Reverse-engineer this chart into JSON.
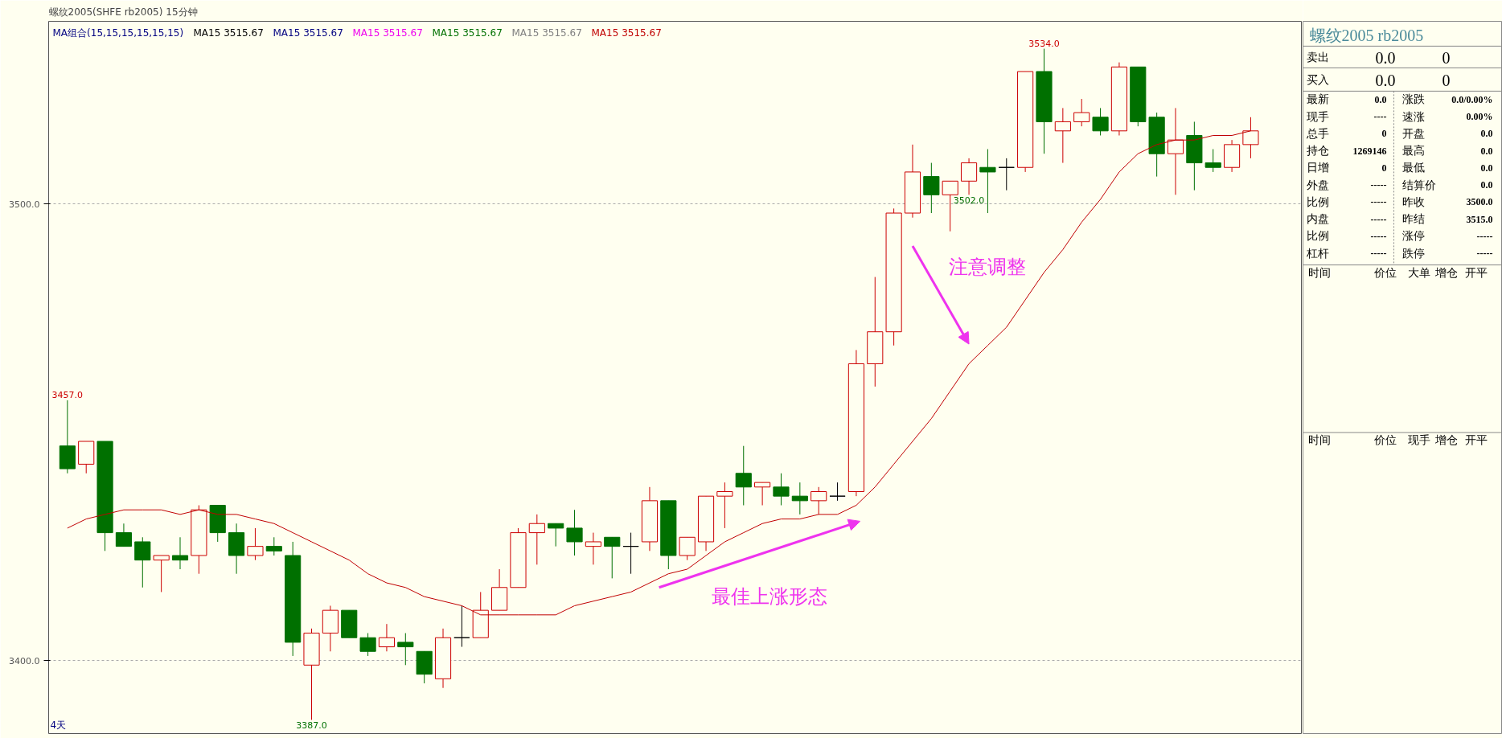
{
  "chart_data": [
    {
      "type": "candlestick",
      "title": "螺纹2005(SHFE rb2005)",
      "subtitle": "15分钟",
      "categories": [
        null,
        null,
        null,
        null,
        null,
        null,
        null,
        null,
        null,
        null,
        null,
        null,
        null,
        null,
        null,
        null,
        null,
        null,
        null,
        null,
        null,
        null,
        null,
        null,
        null,
        null,
        null,
        null,
        null,
        null,
        null,
        null,
        null,
        null,
        null,
        null,
        null,
        null,
        null,
        null,
        null,
        null,
        null,
        null,
        null,
        null,
        null,
        null,
        null,
        null,
        null,
        null,
        null,
        null,
        null,
        null,
        null,
        null,
        null,
        null,
        null,
        null,
        null,
        null
      ],
      "ohlc": [
        [
          3447,
          3457,
          3441,
          3442
        ],
        [
          3443,
          3448,
          3441,
          3448
        ],
        [
          3448,
          3448,
          3424,
          3428
        ],
        [
          3428,
          3430,
          3425,
          3425
        ],
        [
          3426,
          3427,
          3416,
          3422
        ],
        [
          3422,
          3423,
          3415,
          3423
        ],
        [
          3423,
          3427,
          3420,
          3422
        ],
        [
          3423,
          3434,
          3419,
          3433
        ],
        [
          3434,
          3434,
          3426,
          3428
        ],
        [
          3428,
          3430,
          3419,
          3423
        ],
        [
          3423,
          3429,
          3422,
          3425
        ],
        [
          3425,
          3427,
          3423,
          3424
        ],
        [
          3423,
          3426,
          3401,
          3404
        ],
        [
          3399,
          3407,
          3387,
          3406
        ],
        [
          3406,
          3412,
          3402,
          3411
        ],
        [
          3411,
          3411,
          3405,
          3405
        ],
        [
          3405,
          3406,
          3401,
          3402
        ],
        [
          3403,
          3408,
          3402,
          3405
        ],
        [
          3404,
          3406,
          3399,
          3403
        ],
        [
          3402,
          3402,
          3395,
          3397
        ],
        [
          3396,
          3407,
          3394,
          3405
        ],
        [
          3405,
          3412,
          3403,
          3405
        ],
        [
          3405,
          3415,
          3405,
          3411
        ],
        [
          3411,
          3420,
          3411,
          3416
        ],
        [
          3416,
          3429,
          3416,
          3428
        ],
        [
          3428,
          3432,
          3421,
          3430
        ],
        [
          3430,
          3430,
          3425,
          3429
        ],
        [
          3429,
          3433,
          3423,
          3426
        ],
        [
          3425,
          3428,
          3421,
          3426
        ],
        [
          3427,
          3427,
          3418,
          3425
        ],
        [
          3425,
          3428,
          3419,
          3425
        ],
        [
          3426,
          3438,
          3424,
          3435
        ],
        [
          3435,
          3435,
          3420,
          3423
        ],
        [
          3423,
          3427,
          3422,
          3427
        ],
        [
          3426,
          3436,
          3424,
          3436
        ],
        [
          3436,
          3439,
          3429,
          3437
        ],
        [
          3441,
          3447,
          3434,
          3438
        ],
        [
          3438,
          3439,
          3434,
          3439
        ],
        [
          3438,
          3441,
          3434,
          3436
        ],
        [
          3436,
          3439,
          3432,
          3435
        ],
        [
          3435,
          3438,
          3432,
          3437
        ],
        [
          3436,
          3439,
          3435,
          3436
        ],
        [
          3437,
          3468,
          3436,
          3465
        ],
        [
          3465,
          3484,
          3460,
          3472
        ],
        [
          3472,
          3499,
          3469,
          3498
        ],
        [
          3498,
          3513,
          3497,
          3507
        ],
        [
          3506,
          3509,
          3498,
          3502
        ],
        [
          3502,
          3505,
          3494,
          3505
        ],
        [
          3505,
          3510,
          3502,
          3509
        ],
        [
          3508,
          3512,
          3498,
          3507
        ],
        [
          3508,
          3510,
          3503,
          3508
        ],
        [
          3508,
          3529,
          3507,
          3529
        ],
        [
          3529,
          3534,
          3511,
          3518
        ],
        [
          3516,
          3521,
          3509,
          3518
        ],
        [
          3518,
          3523,
          3517,
          3520
        ],
        [
          3519,
          3521,
          3515,
          3516
        ],
        [
          3516,
          3531,
          3515,
          3530
        ],
        [
          3530,
          3530,
          3517,
          3518
        ],
        [
          3519,
          3520,
          3506,
          3511
        ],
        [
          3511,
          3521,
          3502,
          3514
        ],
        [
          3515,
          3518,
          3503,
          3509
        ],
        [
          3509,
          3512,
          3507,
          3508
        ],
        [
          3508,
          3514,
          3507,
          3513
        ],
        [
          3513,
          3519,
          3510,
          3516
        ]
      ],
      "colors": [
        "#007000",
        "#cc0000",
        "#007000",
        "#007000",
        "#007000",
        "#cc0000",
        "#007000",
        "#cc0000",
        "#007000",
        "#007000",
        "#cc0000",
        "#007000",
        "#007000",
        "#cc0000",
        "#cc0000",
        "#007000",
        "#007000",
        "#cc0000",
        "#007000",
        "#007000",
        "#cc0000",
        "#000000",
        "#cc0000",
        "#cc0000",
        "#cc0000",
        "#cc0000",
        "#007000",
        "#007000",
        "#cc0000",
        "#007000",
        "#000000",
        "#cc0000",
        "#007000",
        "#cc0000",
        "#cc0000",
        "#cc0000",
        "#007000",
        "#cc0000",
        "#007000",
        "#007000",
        "#cc0000",
        "#000000",
        "#cc0000",
        "#cc0000",
        "#cc0000",
        "#cc0000",
        "#007000",
        "#cc0000",
        "#cc0000",
        "#007000",
        "#000000",
        "#cc0000",
        "#007000",
        "#cc0000",
        "#cc0000",
        "#007000",
        "#cc0000",
        "#007000",
        "#007000",
        "#cc0000",
        "#007000",
        "#007000",
        "#cc0000",
        "#cc0000"
      ],
      "series": [
        {
          "type": "line",
          "name": "MA15 3515.67",
          "color": "#c00000",
          "values": [
            3429,
            3431,
            3432,
            3433,
            3433,
            3433,
            3432,
            3433,
            3432,
            3432,
            3431,
            3430,
            3428,
            3426,
            3424,
            3422,
            3419,
            3417,
            3416,
            3414,
            3413,
            3412,
            3410,
            3410,
            3410,
            3410,
            3410,
            3412,
            3413,
            3414,
            3415,
            3417,
            3419,
            3420,
            3423,
            3426,
            3428,
            3430,
            3431,
            3431,
            3432,
            3432,
            3434,
            3438,
            3443,
            3448,
            3453,
            3459,
            3465,
            3469,
            3473,
            3479,
            3485,
            3490,
            3496,
            3501,
            3507,
            3511,
            3513,
            3514,
            3514,
            3515,
            3515,
            3516
          ]
        }
      ],
      "ylim": [
        3384,
        3540
      ],
      "yticks": [
        {
          "value": 3400,
          "label": "3400.0"
        },
        {
          "value": 3500,
          "label": "3500.0"
        }
      ],
      "grid": "y",
      "legend": "top left",
      "tick_labels": "y",
      "annotations": [
        "MA组合(15,15,15,15,15,15)",
        "MA15 3515.67",
        "MA15 3515.67",
        "MA15 3515.67",
        "MA15 3515.67",
        "MA15 3515.67",
        "4天",
        "注意调整",
        "最佳上涨形态",
        {
          "text": "3457.0",
          "y": 3457
        },
        {
          "text": "3387.0",
          "y": 3387
        },
        {
          "text": "3534.0",
          "y": 3534
        },
        {
          "text": "3502.0",
          "y": 3502
        }
      ]
    },
    {
      "type": "other",
      "title": "螺纹2005 rb2005",
      "annotations": [
        "卖出",
        "0.0",
        "0",
        "买入",
        "0.0",
        "0",
        "最新",
        "0.0",
        "涨跌",
        "0.0/0.00%",
        "现手",
        "----",
        "速涨",
        "0.00%",
        "总手",
        "0",
        "开盘",
        "0.0",
        "持仓",
        "1269146",
        "最高",
        "0.0",
        "日增",
        "0",
        "最低",
        "0.0",
        "外盘",
        "-----",
        "结算价",
        "0.0",
        "比例",
        "-----",
        "昨收",
        "3500.0",
        "内盘",
        "-----",
        "昨结",
        "3515.0",
        "比例",
        "-----",
        "涨停",
        "-----",
        "杠杆",
        "-----",
        "跌停",
        "-----",
        "时间",
        "价位",
        "大单",
        "增仓",
        "开平",
        "时间",
        "价位",
        "现手",
        "增仓",
        "开平"
      ]
    }
  ]
}
